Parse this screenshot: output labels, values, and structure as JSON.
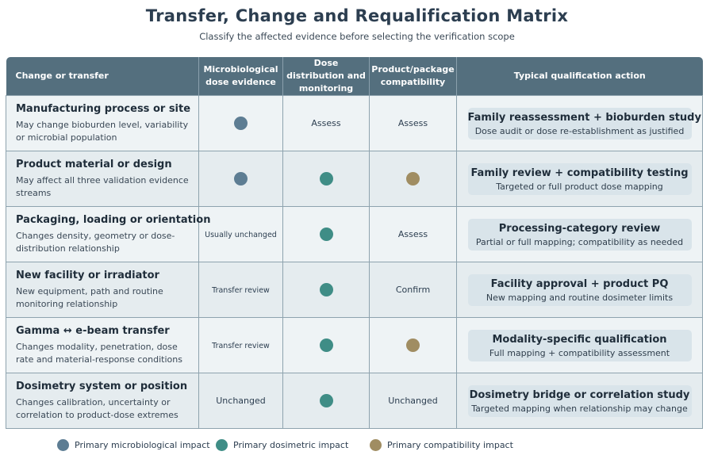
{
  "title": "Transfer, Change and Requalification Matrix",
  "subtitle": "Classify the affected evidence before selecting the verification scope",
  "colors": {
    "microbiological": "#5d7d93",
    "dosimetric": "#3f8d86",
    "compatibility": "#a08d62",
    "header": "#546f7e"
  },
  "columns": [
    "Change or transfer",
    "Microbiological dose evidence",
    "Dose distribution and monitoring",
    "Product/package compatibility",
    "Typical qualification action"
  ],
  "rows": [
    {
      "title": "Manufacturing process or site",
      "description": "May change bioburden level, variability or microbial population",
      "microbiological": {
        "type": "dot",
        "impact": "microbiological"
      },
      "dosimetric": {
        "type": "text",
        "text": "Assess"
      },
      "compatibility": {
        "type": "text",
        "text": "Assess"
      },
      "action_title": "Family reassessment + bioburden study",
      "action_desc": "Dose audit or dose re-establishment as justified"
    },
    {
      "title": "Product material or design",
      "description": "May affect all three validation evidence streams",
      "microbiological": {
        "type": "dot",
        "impact": "microbiological"
      },
      "dosimetric": {
        "type": "dot",
        "impact": "dosimetric"
      },
      "compatibility": {
        "type": "dot",
        "impact": "compatibility"
      },
      "action_title": "Family review + compatibility testing",
      "action_desc": "Targeted or full product dose mapping"
    },
    {
      "title": "Packaging, loading or orientation",
      "description": "Changes density, geometry or dose-distribution relationship",
      "microbiological": {
        "type": "text",
        "text": "Usually unchanged",
        "small": true
      },
      "dosimetric": {
        "type": "dot",
        "impact": "dosimetric"
      },
      "compatibility": {
        "type": "text",
        "text": "Assess"
      },
      "action_title": "Processing-category review",
      "action_desc": "Partial or full mapping; compatibility as needed"
    },
    {
      "title": "New facility or irradiator",
      "description": "New equipment, path and routine monitoring relationship",
      "microbiological": {
        "type": "text",
        "text": "Transfer review",
        "small": true
      },
      "dosimetric": {
        "type": "dot",
        "impact": "dosimetric"
      },
      "compatibility": {
        "type": "text",
        "text": "Confirm"
      },
      "action_title": "Facility approval + product PQ",
      "action_desc": "New mapping and routine dosimeter limits"
    },
    {
      "title": "Gamma ↔ e-beam transfer",
      "description": "Changes modality, penetration, dose rate and material-response conditions",
      "microbiological": {
        "type": "text",
        "text": "Transfer review",
        "small": true
      },
      "dosimetric": {
        "type": "dot",
        "impact": "dosimetric"
      },
      "compatibility": {
        "type": "dot",
        "impact": "compatibility"
      },
      "action_title": "Modality-specific qualification",
      "action_desc": "Full mapping + compatibility assessment"
    },
    {
      "title": "Dosimetry system or position",
      "description": "Changes calibration, uncertainty or correlation to product-dose extremes",
      "microbiological": {
        "type": "text",
        "text": "Unchanged"
      },
      "dosimetric": {
        "type": "dot",
        "impact": "dosimetric"
      },
      "compatibility": {
        "type": "text",
        "text": "Unchanged"
      },
      "action_title": "Dosimetry bridge or correlation study",
      "action_desc": "Targeted mapping when relationship may change"
    }
  ],
  "legend": [
    {
      "label": "Primary microbiological impact",
      "impact": "microbiological"
    },
    {
      "label": "Primary dosimetric impact",
      "impact": "dosimetric"
    },
    {
      "label": "Primary compatibility impact",
      "impact": "compatibility"
    }
  ]
}
